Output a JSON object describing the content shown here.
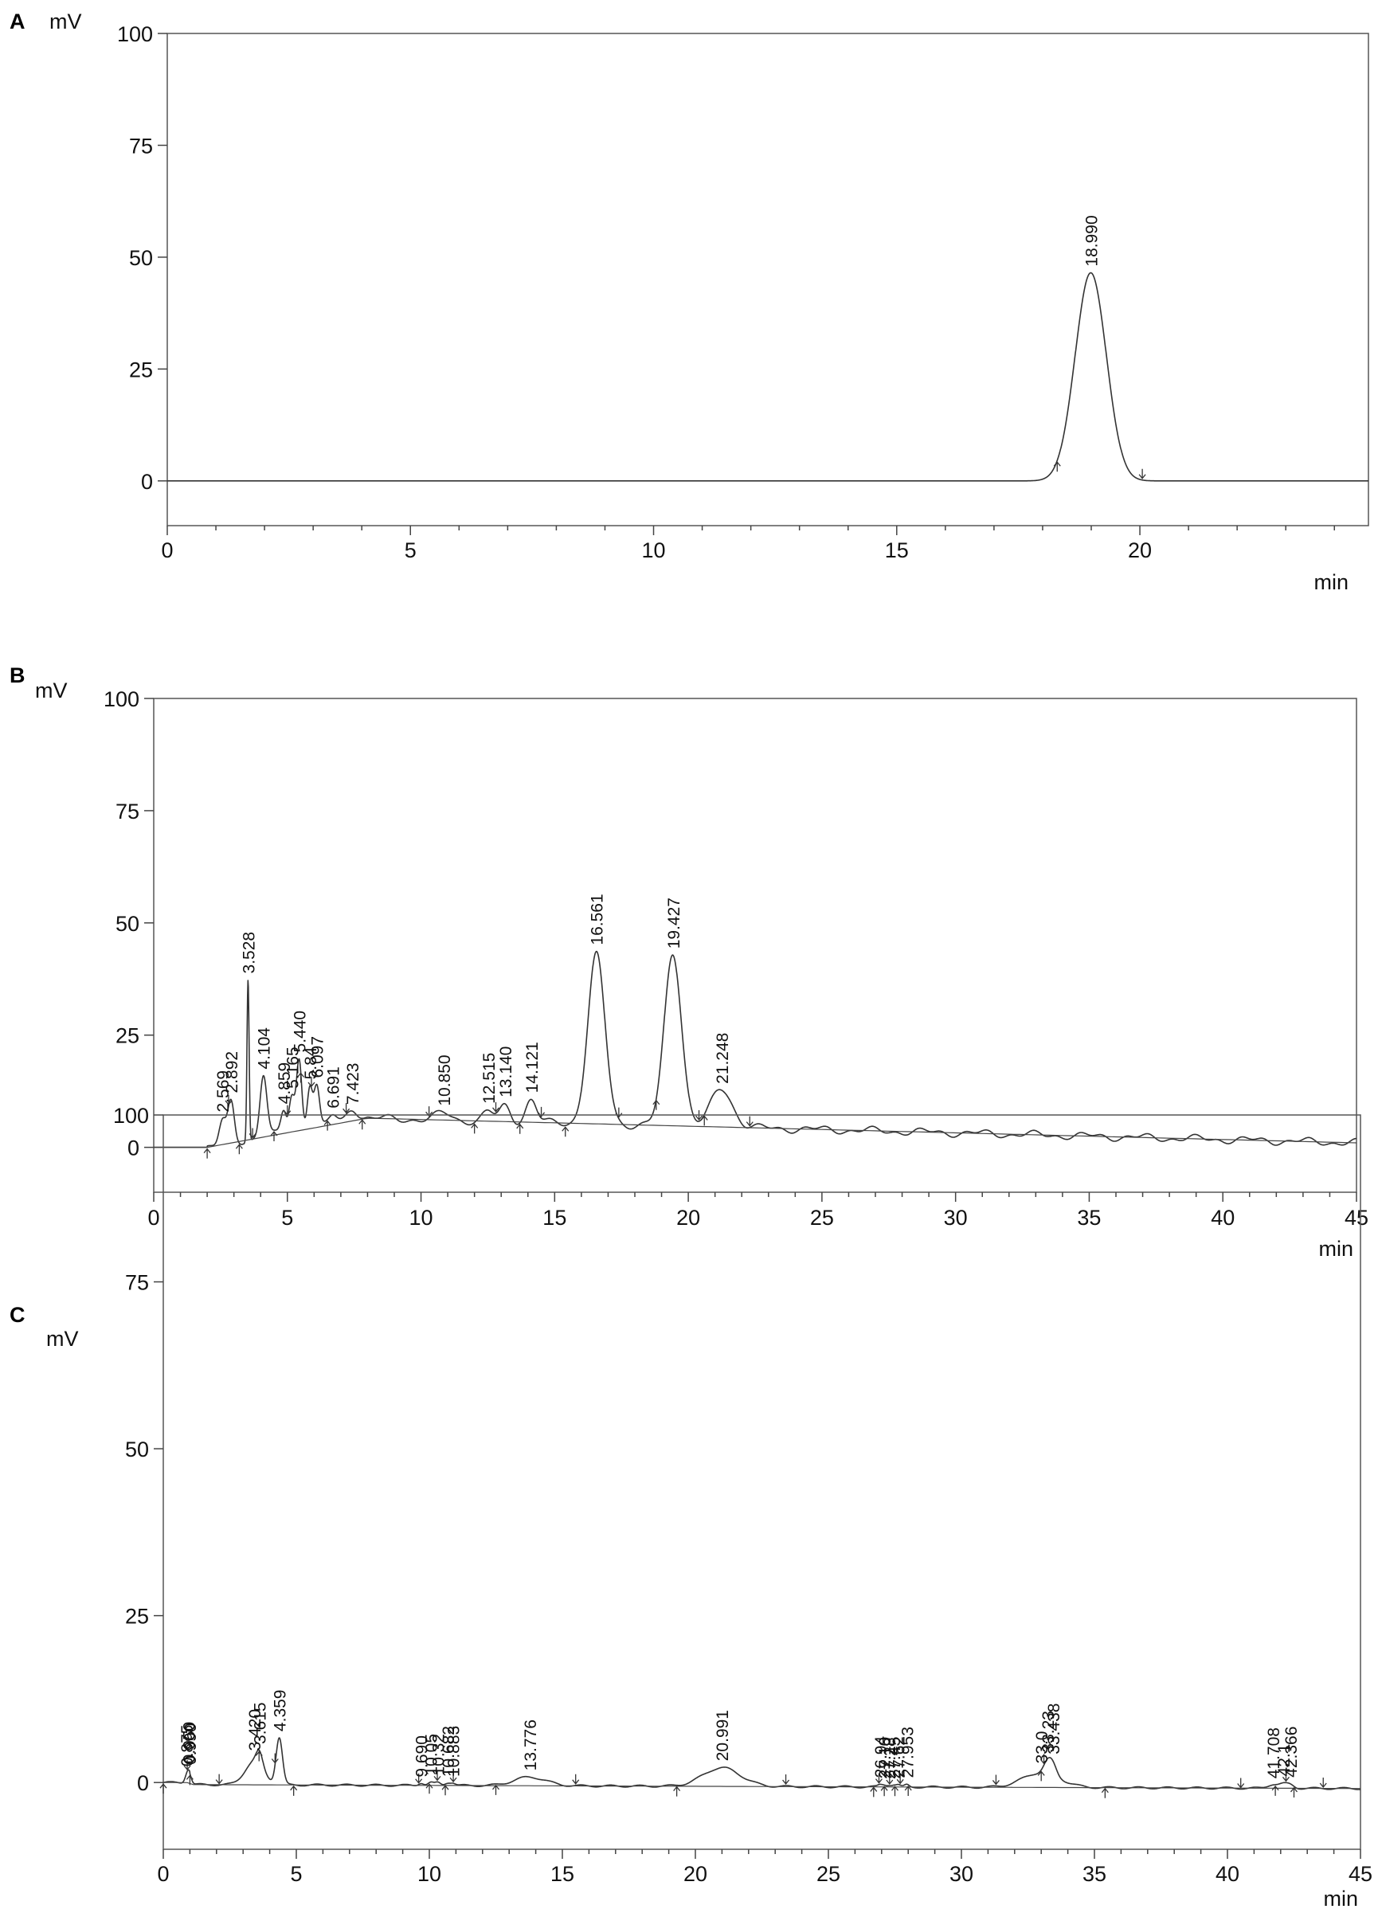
{
  "chart_data": [
    {
      "type": "line",
      "panel": "A",
      "ylabel": "mV",
      "xlabel": "min",
      "xlim": [
        0,
        24.7
      ],
      "ylim": [
        -10,
        100
      ],
      "xticks": [
        0,
        5,
        10,
        15,
        20
      ],
      "yticks": [
        0,
        25,
        50,
        75,
        100
      ],
      "grid": false,
      "peaks": [
        {
          "rt": 18.99,
          "label": "18.990",
          "height": 46.5,
          "width": 0.32
        }
      ],
      "marks": [
        18.3,
        20.05
      ]
    },
    {
      "type": "line",
      "panel": "B",
      "ylabel": "mV",
      "xlabel": "min",
      "xlim": [
        0,
        45
      ],
      "ylim": [
        -10,
        100
      ],
      "xticks": [
        0,
        5,
        10,
        15,
        20,
        25,
        30,
        35,
        40,
        45
      ],
      "yticks": [
        0,
        25,
        50,
        75,
        100
      ],
      "grid": false,
      "peaks": [
        {
          "rt": 2.569,
          "label": "2.569",
          "height": 5,
          "width": 0.12
        },
        {
          "rt": 2.892,
          "label": "2.892",
          "height": 9,
          "width": 0.12
        },
        {
          "rt": 3.528,
          "label": "3.528",
          "height": 36,
          "width": 0.04
        },
        {
          "rt": 4.104,
          "label": "4.104",
          "height": 14,
          "width": 0.13
        },
        {
          "rt": 4.859,
          "label": "4.859",
          "height": 5,
          "width": 0.1
        },
        {
          "rt": 5.165,
          "label": "5.165",
          "height": 8,
          "width": 0.1
        },
        {
          "rt": 5.44,
          "label": "5.440",
          "height": 16,
          "width": 0.1
        },
        {
          "rt": 5.84,
          "label": "5.84",
          "height": 10,
          "width": 0.1
        },
        {
          "rt": 6.097,
          "label": "6.097",
          "height": 9,
          "width": 0.1
        },
        {
          "rt": 6.691,
          "label": "6.691",
          "height": 2,
          "width": 0.15
        },
        {
          "rt": 7.423,
          "label": "7.423",
          "height": 3,
          "width": 0.2
        },
        {
          "rt": 10.85,
          "label": "10.850",
          "height": 1.5,
          "width": 0.3
        },
        {
          "rt": 12.515,
          "label": "12.515",
          "height": 2,
          "width": 0.2
        },
        {
          "rt": 13.14,
          "label": "13.140",
          "height": 3.5,
          "width": 0.2
        },
        {
          "rt": 14.121,
          "label": "14.121",
          "height": 5,
          "width": 0.2
        },
        {
          "rt": 16.561,
          "label": "16.561",
          "height": 37.5,
          "width": 0.32
        },
        {
          "rt": 19.427,
          "label": "19.427",
          "height": 38.5,
          "width": 0.32
        },
        {
          "rt": 21.248,
          "label": "21.248",
          "height": 8.5,
          "width": 0.4
        }
      ],
      "marks": [
        2.0,
        2.8,
        3.2,
        3.7,
        4.5,
        5.0,
        5.5,
        5.9,
        6.5,
        7.2,
        7.8,
        10.3,
        12.0,
        12.8,
        13.7,
        14.5,
        15.4,
        17.4,
        18.8,
        20.4,
        20.6,
        22.3
      ]
    },
    {
      "type": "line",
      "panel": "C",
      "ylabel": "mV",
      "xlabel": "min",
      "xlim": [
        0,
        45
      ],
      "ylim": [
        -10,
        100
      ],
      "xticks": [
        0,
        5,
        10,
        15,
        20,
        25,
        30,
        35,
        40,
        45
      ],
      "yticks": [
        0,
        25,
        50,
        75,
        100
      ],
      "grid": false,
      "peaks": [
        {
          "rt": 0.875,
          "label": "0.875",
          "height": 0.8,
          "width": 0.08
        },
        {
          "rt": 0.95,
          "label": "0.950",
          "height": 0.8,
          "width": 0.08
        },
        {
          "rt": 0.99,
          "label": "0.990",
          "height": 0.8,
          "width": 0.08
        },
        {
          "rt": 3.42,
          "label": "3.420",
          "height": 3.5,
          "width": 0.35
        },
        {
          "rt": 3.615,
          "label": "3.615",
          "height": 2,
          "width": 0.12
        },
        {
          "rt": 4.359,
          "label": "4.359",
          "height": 7,
          "width": 0.12
        },
        {
          "rt": 9.69,
          "label": "9.690",
          "height": 0.4,
          "width": 0.1
        },
        {
          "rt": 10.05,
          "label": "10.05",
          "height": 0.4,
          "width": 0.1
        },
        {
          "rt": 10.32,
          "label": "10.32",
          "height": 0.4,
          "width": 0.1
        },
        {
          "rt": 10.682,
          "label": "10.682",
          "height": 0.4,
          "width": 0.1
        },
        {
          "rt": 10.883,
          "label": "10.883",
          "height": 0.4,
          "width": 0.1
        },
        {
          "rt": 13.776,
          "label": "13.776",
          "height": 1.3,
          "width": 0.6
        },
        {
          "rt": 20.991,
          "label": "20.991",
          "height": 2.8,
          "width": 0.7
        },
        {
          "rt": 26.94,
          "label": "26.94",
          "height": 0.3,
          "width": 0.08
        },
        {
          "rt": 27.1,
          "label": "27.10",
          "height": 0.3,
          "width": 0.08
        },
        {
          "rt": 27.28,
          "label": "27.28",
          "height": 0.3,
          "width": 0.08
        },
        {
          "rt": 27.45,
          "label": "27.45",
          "height": 0.3,
          "width": 0.08
        },
        {
          "rt": 27.62,
          "label": "27.62",
          "height": 0.3,
          "width": 0.08
        },
        {
          "rt": 27.95,
          "label": "27.953",
          "height": 0.3,
          "width": 0.08
        },
        {
          "rt": 33.0,
          "label": "33.0",
          "height": 2.2,
          "width": 0.7
        },
        {
          "rt": 33.23,
          "label": "33.23",
          "height": 1.5,
          "width": 0.15
        },
        {
          "rt": 33.438,
          "label": "33.438",
          "height": 1.5,
          "width": 0.15
        },
        {
          "rt": 41.708,
          "label": "41.708",
          "height": 0.6,
          "width": 0.2
        },
        {
          "rt": 42.1,
          "label": "42.1",
          "height": 0.5,
          "width": 0.15
        },
        {
          "rt": 42.366,
          "label": "42.366",
          "height": 0.5,
          "width": 0.15
        }
      ],
      "marks": [
        0.0,
        0.9,
        1.0,
        2.1,
        3.6,
        4.2,
        4.9,
        9.6,
        10.0,
        10.3,
        10.6,
        10.9,
        12.5,
        15.5,
        19.3,
        23.4,
        26.7,
        26.9,
        27.1,
        27.3,
        27.5,
        27.7,
        28.0,
        31.3,
        33.0,
        33.1,
        35.4,
        40.5,
        41.8,
        42.2,
        42.5,
        43.6
      ]
    }
  ]
}
